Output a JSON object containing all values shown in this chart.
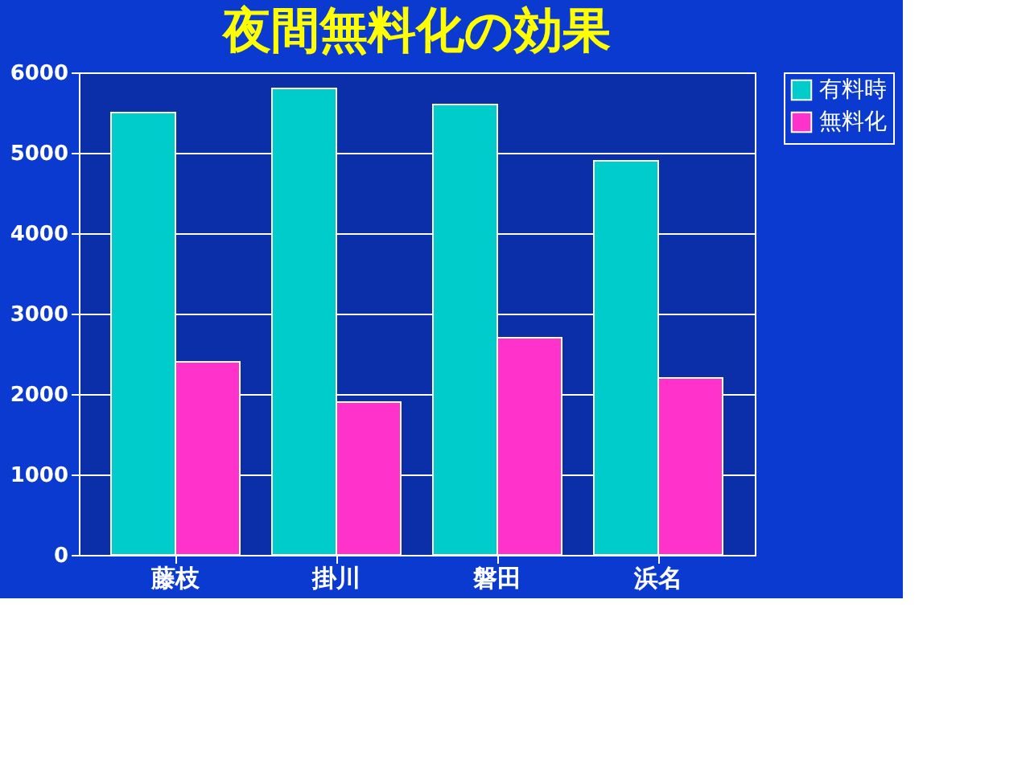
{
  "chart_data": {
    "type": "bar",
    "title": "夜間無料化の効果",
    "categories": [
      "藤枝",
      "掛川",
      "磐田",
      "浜名"
    ],
    "series": [
      {
        "name": "有料時",
        "color": "#00cccc",
        "values": [
          5500,
          5800,
          5600,
          4900
        ]
      },
      {
        "name": "無料化",
        "color": "#ff33cc",
        "values": [
          2400,
          1900,
          2700,
          2200
        ]
      }
    ],
    "ylim": [
      0,
      6000
    ],
    "yticks": [
      0,
      1000,
      2000,
      3000,
      4000,
      5000,
      6000
    ],
    "grid": "y",
    "legend": "right"
  }
}
